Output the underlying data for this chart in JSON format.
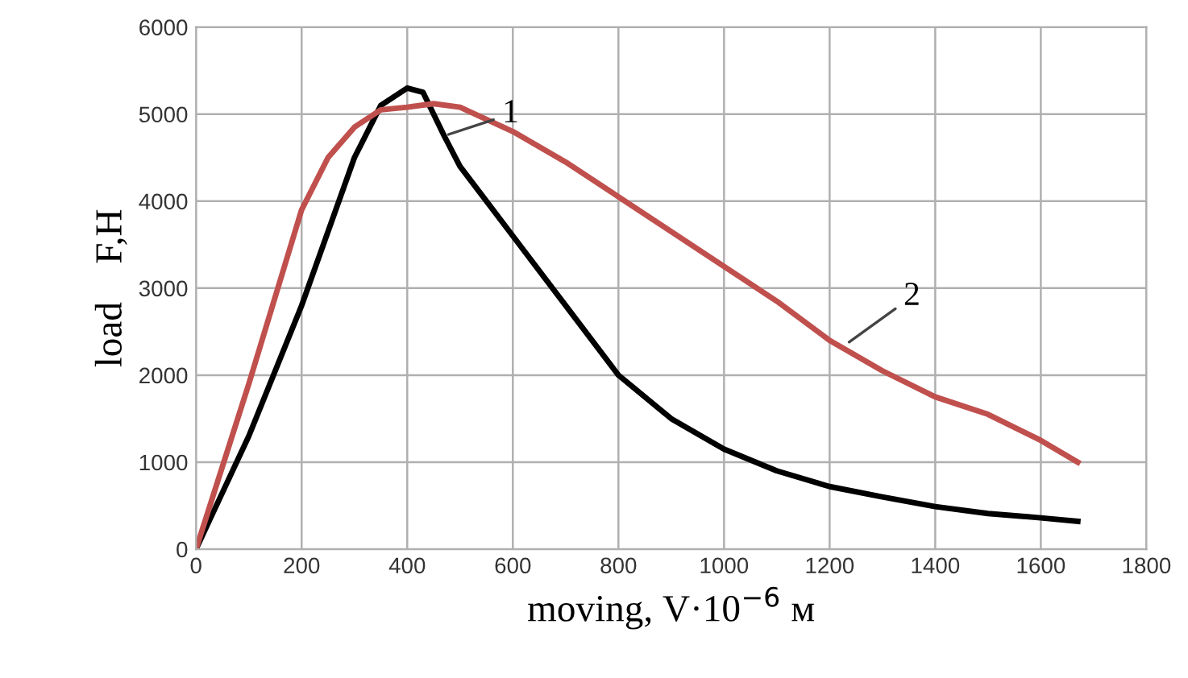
{
  "chart_data": {
    "type": "line",
    "xlabel": "moving, V·10$^{−6}$ м",
    "ylabel": "load    F,Н",
    "xlim": [
      0,
      1800
    ],
    "xticks": [
      0,
      200,
      400,
      600,
      800,
      1000,
      1200,
      1400,
      1600,
      1800
    ],
    "ylim": [
      0,
      6000
    ],
    "yticks": [
      0,
      1000,
      2000,
      3000,
      4000,
      5000,
      6000
    ],
    "grid": true,
    "series": [
      {
        "color": "#000000",
        "x": [
          0,
          100,
          200,
          300,
          350,
          400,
          430,
          470,
          500,
          600,
          700,
          800,
          900,
          1000,
          1100,
          1200,
          1300,
          1400,
          1500,
          1600,
          1670
        ],
        "values": [
          0,
          1300,
          2800,
          4500,
          5100,
          5300,
          5250,
          4750,
          4400,
          3600,
          2800,
          2000,
          1500,
          1150,
          900,
          720,
          600,
          490,
          410,
          360,
          320
        ]
      },
      {
        "color": "#c0504d",
        "x": [
          0,
          100,
          200,
          250,
          300,
          350,
          400,
          450,
          500,
          600,
          700,
          800,
          900,
          1000,
          1100,
          1200,
          1300,
          1400,
          1500,
          1600,
          1670
        ],
        "values": [
          0,
          1900,
          3900,
          4500,
          4850,
          5050,
          5080,
          5120,
          5080,
          4800,
          4450,
          4050,
          3650,
          3250,
          2850,
          2400,
          2050,
          1750,
          1550,
          1250,
          1000
        ]
      }
    ],
    "annotations": [
      {
        "text": "1",
        "x": 470,
        "y": 4750
      },
      {
        "text": "2",
        "x": 1230,
        "y": 2350
      }
    ]
  }
}
